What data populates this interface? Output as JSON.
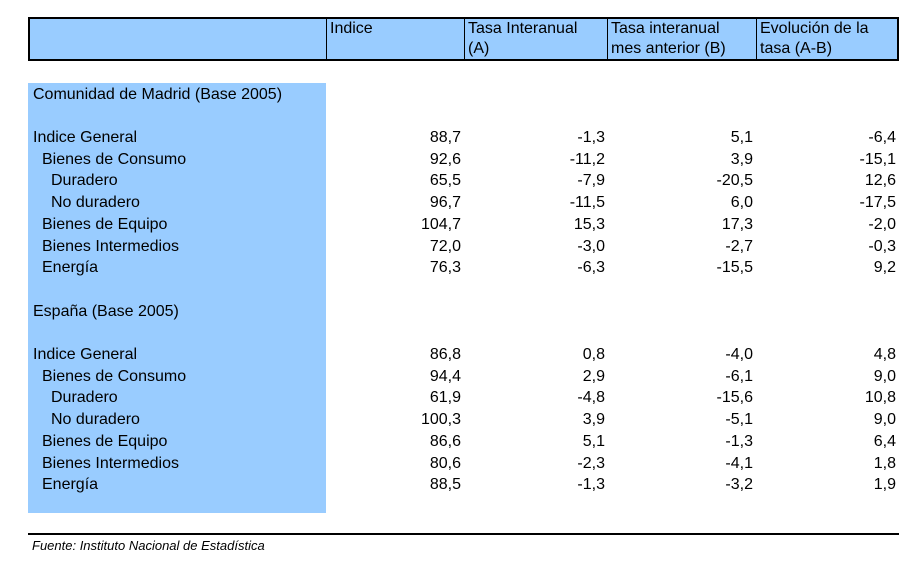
{
  "header": {
    "col1": "Indice",
    "col2_line1": "Tasa Interanual",
    "col2_line2": "(A)",
    "col3_line1": "Tasa interanual",
    "col3_line2": "mes anterior (B)",
    "col4_line1": "Evolución de la",
    "col4_line2": "tasa (A-B)"
  },
  "madrid": {
    "title": "Comunidad de Madrid (Base 2005)",
    "rows": [
      {
        "label": "Indice General",
        "indice": "88,7",
        "a": "-1,3",
        "b": "5,1",
        "ab": "-6,4"
      },
      {
        "label": "Bienes de Consumo",
        "indice": "92,6",
        "a": "-11,2",
        "b": "3,9",
        "ab": "-15,1"
      },
      {
        "label": "Duradero",
        "indice": "65,5",
        "a": "-7,9",
        "b": "-20,5",
        "ab": "12,6"
      },
      {
        "label": "No duradero",
        "indice": "96,7",
        "a": "-11,5",
        "b": "6,0",
        "ab": "-17,5"
      },
      {
        "label": "Bienes de Equipo",
        "indice": "104,7",
        "a": "15,3",
        "b": "17,3",
        "ab": "-2,0"
      },
      {
        "label": "Bienes Intermedios",
        "indice": "72,0",
        "a": "-3,0",
        "b": "-2,7",
        "ab": "-0,3"
      },
      {
        "label": "Energía",
        "indice": "76,3",
        "a": "-6,3",
        "b": "-15,5",
        "ab": "9,2"
      }
    ]
  },
  "espana": {
    "title": "España (Base 2005)",
    "rows": [
      {
        "label": "Indice General",
        "indice": "86,8",
        "a": "0,8",
        "b": "-4,0",
        "ab": "4,8"
      },
      {
        "label": "Bienes de Consumo",
        "indice": "94,4",
        "a": "2,9",
        "b": "-6,1",
        "ab": "9,0"
      },
      {
        "label": "Duradero",
        "indice": "61,9",
        "a": "-4,8",
        "b": "-15,6",
        "ab": "10,8"
      },
      {
        "label": "No duradero",
        "indice": "100,3",
        "a": "3,9",
        "b": "-5,1",
        "ab": "9,0"
      },
      {
        "label": "Bienes de Equipo",
        "indice": "86,6",
        "a": "5,1",
        "b": "-1,3",
        "ab": "6,4"
      },
      {
        "label": "Bienes Intermedios",
        "indice": "80,6",
        "a": "-2,3",
        "b": "-4,1",
        "ab": "1,8"
      },
      {
        "label": "Energía",
        "indice": "88,5",
        "a": "-1,3",
        "b": "-3,2",
        "ab": "1,9"
      }
    ]
  },
  "source": "Fuente: Instituto Nacional de Estadística",
  "colors": {
    "header_bg": "#99ccff",
    "label_column_bg": "#99ccff"
  }
}
